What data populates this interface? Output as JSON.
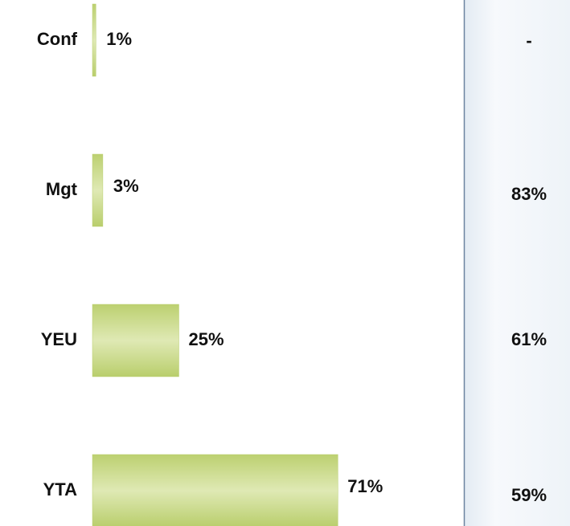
{
  "chart_data": {
    "type": "bar",
    "categories": [
      "Conf",
      "Mgt",
      "YEU",
      "YTA"
    ],
    "values": [
      1,
      3,
      25,
      71
    ],
    "value_labels": [
      "1%",
      "3%",
      "25%",
      "71%"
    ],
    "color": "#b9cf6e",
    "side_values": [
      null,
      83,
      61,
      59
    ],
    "side_value_labels": [
      "-",
      "83%",
      "61%",
      "59%"
    ]
  }
}
